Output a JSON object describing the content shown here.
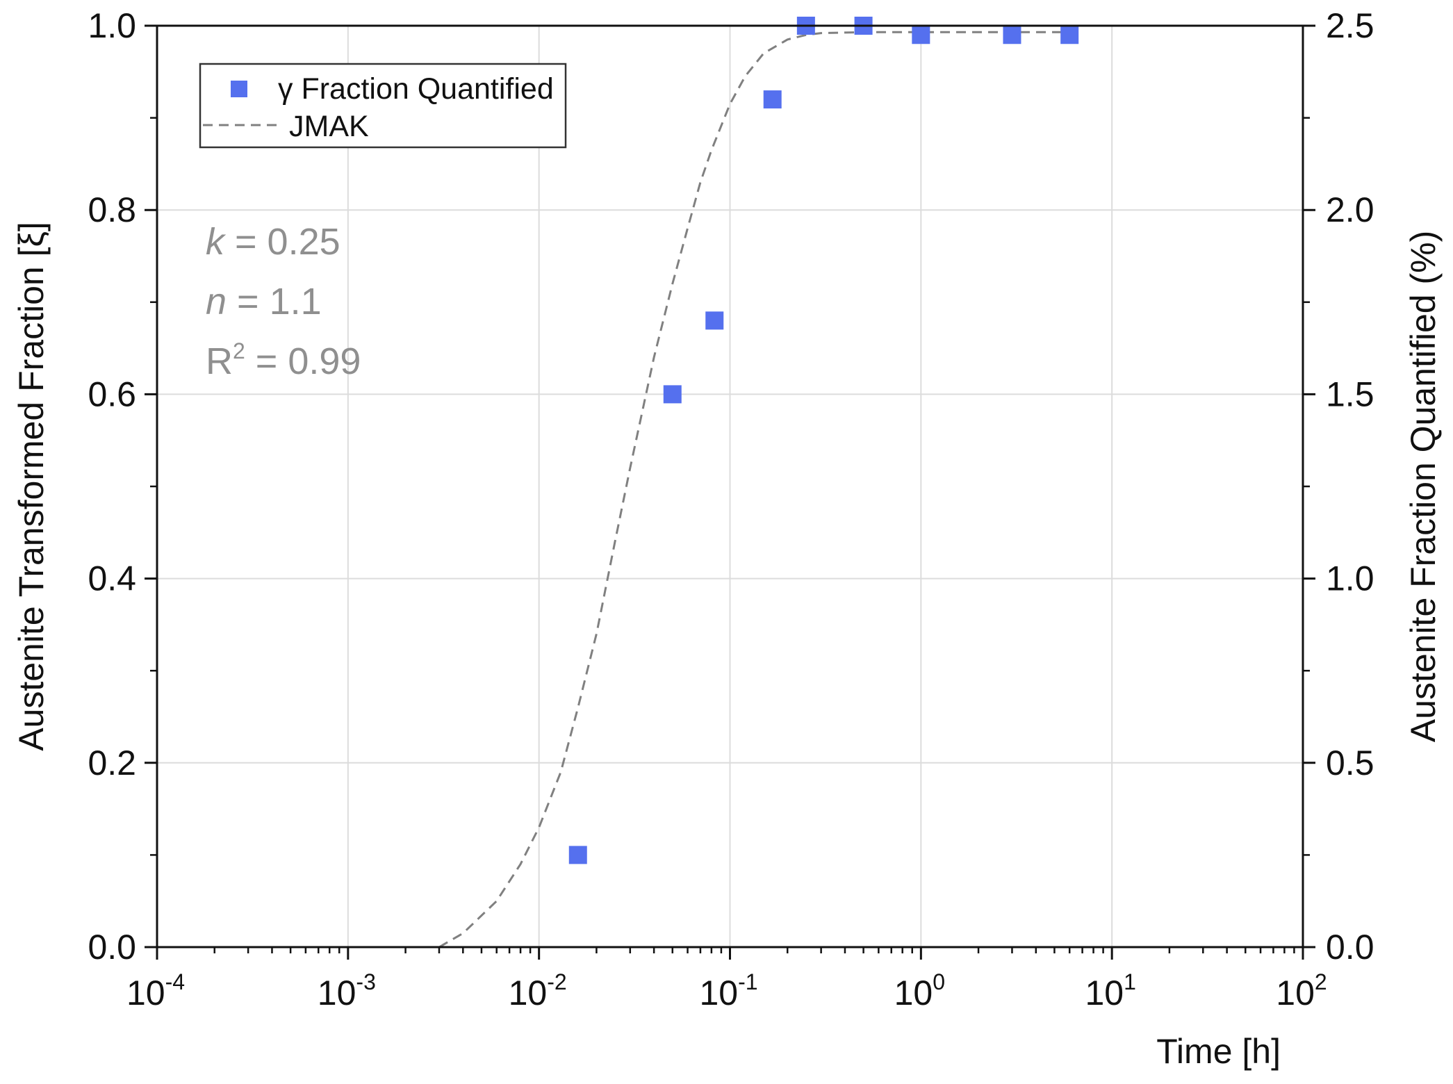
{
  "chart_data": {
    "type": "scatter",
    "xlabel": "Time [h]",
    "ylabel": "Austenite Transformed Fraction [ξ]",
    "y2label": "Austenite Fraction Quantified (%)",
    "x_scale": "log",
    "xlim": [
      0.0001,
      100
    ],
    "ylim": [
      0,
      1.0
    ],
    "y2lim": [
      0,
      2.5
    ],
    "grid": true,
    "legend_position": "top-left",
    "x_ticks": [
      {
        "base": "10",
        "exp": "-4",
        "value": 0.0001
      },
      {
        "base": "10",
        "exp": "-3",
        "value": 0.001
      },
      {
        "base": "10",
        "exp": "-2",
        "value": 0.01
      },
      {
        "base": "10",
        "exp": "-1",
        "value": 0.1
      },
      {
        "base": "10",
        "exp": "0",
        "value": 1
      },
      {
        "base": "10",
        "exp": "1",
        "value": 10
      },
      {
        "base": "10",
        "exp": "2",
        "value": 100
      }
    ],
    "y_ticks": [
      "0.0",
      "0.2",
      "0.4",
      "0.6",
      "0.8",
      "1.0"
    ],
    "y2_ticks": [
      "0.0",
      "0.5",
      "1.0",
      "1.5",
      "2.0",
      "2.5"
    ],
    "series": [
      {
        "name": "γ Fraction Quantified",
        "kind": "markers",
        "marker": "square",
        "color": "#5570ee",
        "x": [
          0.016,
          0.05,
          0.083,
          0.167,
          0.25,
          0.5,
          1,
          3,
          6
        ],
        "y": [
          0.1,
          0.6,
          0.68,
          0.92,
          1.0,
          1.0,
          0.99,
          0.99,
          0.99
        ]
      },
      {
        "name": "JMAK",
        "kind": "dashed-line",
        "color": "#808080",
        "x": [
          0.003,
          0.004,
          0.006,
          0.008,
          0.01,
          0.013,
          0.016,
          0.02,
          0.025,
          0.03,
          0.04,
          0.05,
          0.06,
          0.07,
          0.08,
          0.1,
          0.12,
          0.15,
          0.2,
          0.25,
          0.3,
          0.5,
          1,
          3,
          6
        ],
        "y": [
          0.0,
          0.015,
          0.05,
          0.09,
          0.13,
          0.19,
          0.26,
          0.34,
          0.44,
          0.52,
          0.64,
          0.72,
          0.78,
          0.83,
          0.865,
          0.915,
          0.945,
          0.97,
          0.985,
          0.99,
          0.992,
          0.993,
          0.993,
          0.993,
          0.993
        ]
      }
    ],
    "annotations": [
      {
        "italic_var": "k",
        "text": " = 0.25"
      },
      {
        "italic_var": "n",
        "text": " = 1.1"
      },
      {
        "base": "R",
        "sup": "2",
        "text": " = 0.99"
      }
    ],
    "colors": {
      "marker": "#5570ee",
      "fit_line": "#808080",
      "grid": "#dcdcdc",
      "axis": "#111111",
      "annotation": "#8f8f8f"
    }
  }
}
